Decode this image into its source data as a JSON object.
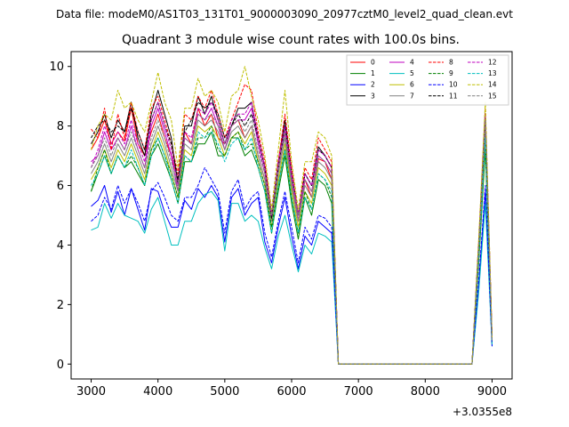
{
  "chart_data": {
    "type": "line",
    "suptitle": "Data file: modeM0/AS1T03_131T01_9000003090_20977cztM0_level2_quad_clean.evt",
    "title": "Quadrant 3 module wise count rates with 100.0s bins.",
    "xlabel": "",
    "ylabel": "",
    "x_offset_label": "+3.0355e8",
    "xlim": [
      2700,
      9300
    ],
    "ylim": [
      -0.5,
      10.5
    ],
    "xticks": [
      3000,
      4000,
      5000,
      6000,
      7000,
      8000,
      9000
    ],
    "yticks": [
      0,
      2,
      4,
      6,
      8,
      10
    ],
    "x": [
      3000,
      3100,
      3200,
      3300,
      3400,
      3500,
      3600,
      3700,
      3800,
      3900,
      4000,
      4100,
      4200,
      4300,
      4400,
      4500,
      4600,
      4700,
      4800,
      4900,
      5000,
      5100,
      5200,
      5300,
      5400,
      5500,
      5600,
      5700,
      5800,
      5900,
      6000,
      6100,
      6200,
      6300,
      6400,
      6500,
      6600,
      6700,
      6800,
      8700,
      8800,
      8900,
      9000
    ],
    "legend_location": "upper right",
    "legend_columns": 4,
    "series": [
      {
        "name": "0",
        "color": "#ff0000",
        "dash": "solid",
        "values": [
          7.2,
          7.6,
          8.2,
          7.4,
          7.8,
          7.5,
          8.6,
          7.4,
          7.0,
          7.8,
          8.4,
          7.6,
          7.0,
          6.2,
          7.8,
          7.4,
          8.6,
          8.0,
          8.4,
          7.6,
          7.4,
          8.0,
          8.2,
          7.6,
          8.0,
          7.0,
          6.2,
          4.9,
          6.6,
          7.8,
          6.0,
          4.8,
          6.2,
          5.6,
          6.9,
          6.8,
          6.2,
          0.0,
          0.0,
          0.0,
          3.8,
          8.0,
          0.8
        ]
      },
      {
        "name": "1",
        "color": "#008000",
        "dash": "solid",
        "values": [
          5.8,
          6.4,
          7.0,
          6.4,
          7.0,
          6.6,
          6.8,
          6.4,
          6.0,
          7.0,
          7.4,
          6.8,
          6.2,
          5.4,
          6.8,
          6.8,
          7.4,
          7.4,
          7.8,
          7.0,
          7.0,
          7.6,
          7.6,
          7.0,
          7.2,
          6.6,
          5.8,
          4.4,
          5.8,
          7.0,
          5.4,
          4.2,
          5.6,
          5.0,
          6.2,
          6.0,
          5.4,
          0.0,
          0.0,
          0.0,
          3.4,
          7.2,
          0.7
        ]
      },
      {
        "name": "2",
        "color": "#0000ff",
        "dash": "solid",
        "values": [
          5.3,
          5.5,
          6.0,
          5.1,
          5.8,
          5.0,
          5.9,
          5.2,
          4.5,
          5.9,
          5.8,
          5.1,
          4.6,
          4.6,
          5.5,
          5.2,
          5.9,
          5.6,
          6.0,
          5.6,
          4.1,
          5.6,
          5.9,
          5.0,
          5.4,
          5.6,
          4.1,
          3.4,
          4.6,
          5.6,
          4.3,
          3.2,
          4.3,
          4.0,
          4.8,
          4.6,
          4.4,
          0.0,
          0.0,
          0.0,
          2.6,
          5.8,
          0.6
        ]
      },
      {
        "name": "3",
        "color": "#000000",
        "dash": "solid",
        "values": [
          7.4,
          7.8,
          8.4,
          7.6,
          8.2,
          7.8,
          8.8,
          7.6,
          7.0,
          8.4,
          9.2,
          8.4,
          7.6,
          6.0,
          8.0,
          8.0,
          9.0,
          8.4,
          9.0,
          8.2,
          7.4,
          8.0,
          8.6,
          8.6,
          8.8,
          7.6,
          6.6,
          5.0,
          6.8,
          8.2,
          6.4,
          5.0,
          6.4,
          6.0,
          7.3,
          7.0,
          6.6,
          0.0,
          0.0,
          0.0,
          4.0,
          8.4,
          0.8
        ]
      },
      {
        "name": "4",
        "color": "#bf00bf",
        "dash": "solid",
        "values": [
          6.8,
          7.0,
          7.8,
          7.2,
          7.6,
          7.2,
          8.0,
          7.2,
          6.6,
          8.0,
          8.6,
          7.8,
          7.0,
          5.8,
          7.6,
          7.4,
          8.4,
          8.2,
          8.6,
          8.0,
          7.2,
          8.0,
          8.2,
          8.2,
          8.6,
          7.4,
          6.4,
          4.8,
          6.6,
          7.8,
          6.2,
          4.8,
          6.2,
          5.8,
          7.0,
          6.8,
          6.4,
          0.0,
          0.0,
          0.0,
          3.9,
          8.2,
          0.8
        ]
      },
      {
        "name": "5",
        "color": "#00bfbf",
        "dash": "solid",
        "values": [
          4.5,
          4.6,
          5.4,
          4.9,
          5.4,
          5.0,
          4.9,
          4.8,
          4.4,
          5.2,
          5.6,
          4.8,
          4.0,
          4.0,
          4.8,
          4.8,
          5.4,
          5.7,
          5.8,
          5.5,
          3.8,
          5.4,
          5.4,
          4.8,
          5.0,
          4.8,
          3.9,
          3.2,
          4.3,
          5.0,
          4.0,
          3.1,
          4.0,
          3.7,
          4.4,
          4.3,
          4.1,
          0.0,
          0.0,
          0.0,
          2.4,
          5.4,
          0.6
        ]
      },
      {
        "name": "6",
        "color": "#bfbf00",
        "dash": "solid",
        "values": [
          6.2,
          6.6,
          7.2,
          6.6,
          7.2,
          6.8,
          7.4,
          6.8,
          6.2,
          7.2,
          7.8,
          7.2,
          6.4,
          5.6,
          7.2,
          7.0,
          8.0,
          7.8,
          8.0,
          7.6,
          7.0,
          7.6,
          7.8,
          7.4,
          7.8,
          6.8,
          6.0,
          4.6,
          6.2,
          7.4,
          5.8,
          4.6,
          5.8,
          5.4,
          6.6,
          6.4,
          6.0,
          0.0,
          0.0,
          0.0,
          3.7,
          7.8,
          0.8
        ]
      },
      {
        "name": "7",
        "color": "#808080",
        "dash": "solid",
        "values": [
          6.4,
          6.8,
          7.4,
          6.8,
          7.4,
          7.0,
          7.6,
          7.0,
          6.4,
          7.4,
          8.0,
          7.4,
          6.6,
          5.8,
          7.4,
          7.2,
          8.2,
          8.0,
          8.2,
          7.8,
          7.2,
          7.8,
          8.0,
          7.6,
          8.0,
          7.0,
          6.2,
          4.8,
          6.4,
          7.6,
          6.0,
          4.8,
          6.0,
          5.6,
          6.8,
          6.6,
          6.2,
          0.0,
          0.0,
          0.0,
          3.8,
          8.0,
          0.8
        ]
      },
      {
        "name": "8",
        "color": "#ff0000",
        "dash": "dashed",
        "values": [
          7.9,
          7.6,
          8.6,
          7.2,
          8.4,
          7.6,
          8.8,
          7.8,
          7.2,
          8.6,
          9.0,
          8.2,
          7.4,
          6.4,
          8.4,
          8.2,
          9.0,
          8.6,
          9.2,
          8.4,
          7.6,
          8.2,
          8.8,
          9.4,
          9.2,
          7.8,
          6.8,
          5.0,
          6.8,
          8.4,
          6.6,
          5.0,
          6.6,
          6.2,
          7.6,
          7.2,
          6.8,
          0.0,
          0.0,
          0.0,
          4.1,
          8.6,
          0.9
        ]
      },
      {
        "name": "9",
        "color": "#008000",
        "dash": "dashed",
        "values": [
          5.8,
          6.6,
          7.2,
          6.4,
          7.0,
          6.6,
          7.0,
          6.6,
          6.0,
          7.2,
          7.6,
          7.0,
          6.4,
          5.6,
          7.0,
          6.8,
          7.6,
          7.6,
          8.0,
          7.2,
          7.0,
          7.6,
          7.8,
          7.2,
          7.4,
          6.8,
          6.0,
          4.6,
          6.0,
          7.2,
          5.6,
          4.4,
          5.8,
          5.2,
          6.4,
          6.2,
          5.6,
          0.0,
          0.0,
          0.0,
          3.5,
          7.4,
          0.7
        ]
      },
      {
        "name": "10",
        "color": "#0000ff",
        "dash": "dashed",
        "values": [
          4.8,
          5.0,
          5.6,
          5.2,
          6.0,
          5.4,
          5.9,
          5.4,
          4.8,
          5.8,
          6.1,
          5.6,
          5.0,
          4.8,
          5.6,
          5.6,
          6.0,
          6.6,
          6.2,
          5.8,
          4.4,
          5.8,
          6.2,
          5.2,
          5.6,
          5.8,
          4.4,
          3.6,
          4.8,
          5.8,
          4.6,
          3.4,
          4.6,
          4.2,
          5.0,
          4.9,
          4.6,
          0.0,
          0.0,
          0.0,
          2.8,
          6.0,
          0.6
        ]
      },
      {
        "name": "11",
        "color": "#000000",
        "dash": "dashed",
        "values": [
          7.6,
          8.0,
          8.2,
          7.8,
          8.0,
          7.8,
          8.6,
          7.8,
          7.2,
          8.2,
          8.8,
          8.0,
          7.4,
          6.2,
          7.8,
          8.2,
          8.8,
          8.6,
          8.8,
          8.4,
          7.6,
          8.0,
          8.4,
          8.0,
          8.4,
          7.6,
          6.6,
          4.9,
          6.6,
          8.0,
          6.4,
          5.0,
          6.4,
          6.0,
          7.2,
          7.0,
          6.6,
          0.0,
          0.0,
          0.0,
          4.0,
          8.4,
          0.8
        ]
      },
      {
        "name": "12",
        "color": "#bf00bf",
        "dash": "dashed",
        "values": [
          6.6,
          7.2,
          8.0,
          7.4,
          7.8,
          7.4,
          8.2,
          7.4,
          6.8,
          8.2,
          8.8,
          8.0,
          7.2,
          6.0,
          7.8,
          7.6,
          8.6,
          8.4,
          8.8,
          8.2,
          7.4,
          8.2,
          8.4,
          8.4,
          8.8,
          7.6,
          6.6,
          5.0,
          6.8,
          8.0,
          6.4,
          5.0,
          6.4,
          6.0,
          7.2,
          7.0,
          6.6,
          0.0,
          0.0,
          0.0,
          4.0,
          8.4,
          0.8
        ]
      },
      {
        "name": "13",
        "color": "#00bfbf",
        "dash": "dashed",
        "values": [
          6.0,
          6.4,
          7.0,
          6.4,
          7.0,
          6.6,
          7.2,
          6.6,
          6.0,
          7.0,
          7.6,
          7.0,
          6.2,
          5.4,
          7.0,
          6.8,
          7.8,
          7.6,
          7.8,
          7.4,
          6.8,
          7.4,
          7.6,
          7.2,
          7.6,
          6.6,
          5.8,
          4.4,
          6.0,
          7.2,
          5.6,
          4.4,
          5.6,
          5.2,
          6.4,
          6.2,
          5.8,
          0.0,
          0.0,
          0.0,
          3.6,
          7.6,
          0.7
        ]
      },
      {
        "name": "14",
        "color": "#bfbf00",
        "dash": "dashed",
        "values": [
          7.2,
          8.0,
          8.4,
          8.2,
          9.2,
          8.6,
          8.8,
          8.2,
          7.8,
          8.8,
          9.8,
          8.8,
          8.2,
          6.6,
          8.6,
          8.6,
          9.6,
          9.0,
          9.2,
          8.8,
          7.8,
          9.0,
          9.2,
          10.0,
          9.0,
          8.2,
          7.0,
          5.2,
          7.2,
          9.2,
          6.8,
          5.2,
          6.8,
          6.8,
          7.8,
          7.6,
          7.0,
          0.0,
          0.0,
          0.0,
          4.2,
          8.8,
          0.9
        ]
      },
      {
        "name": "15",
        "color": "#808080",
        "dash": "dashed",
        "values": [
          6.6,
          7.0,
          7.6,
          7.0,
          7.6,
          7.2,
          7.8,
          7.2,
          6.6,
          7.6,
          8.2,
          7.6,
          6.8,
          6.0,
          7.6,
          7.4,
          8.4,
          8.2,
          8.4,
          8.0,
          7.4,
          8.0,
          8.2,
          7.8,
          8.2,
          7.2,
          6.4,
          5.0,
          6.6,
          7.8,
          6.2,
          5.0,
          6.2,
          5.8,
          7.0,
          6.8,
          6.4,
          0.0,
          0.0,
          0.0,
          3.9,
          8.2,
          0.8
        ]
      }
    ]
  }
}
